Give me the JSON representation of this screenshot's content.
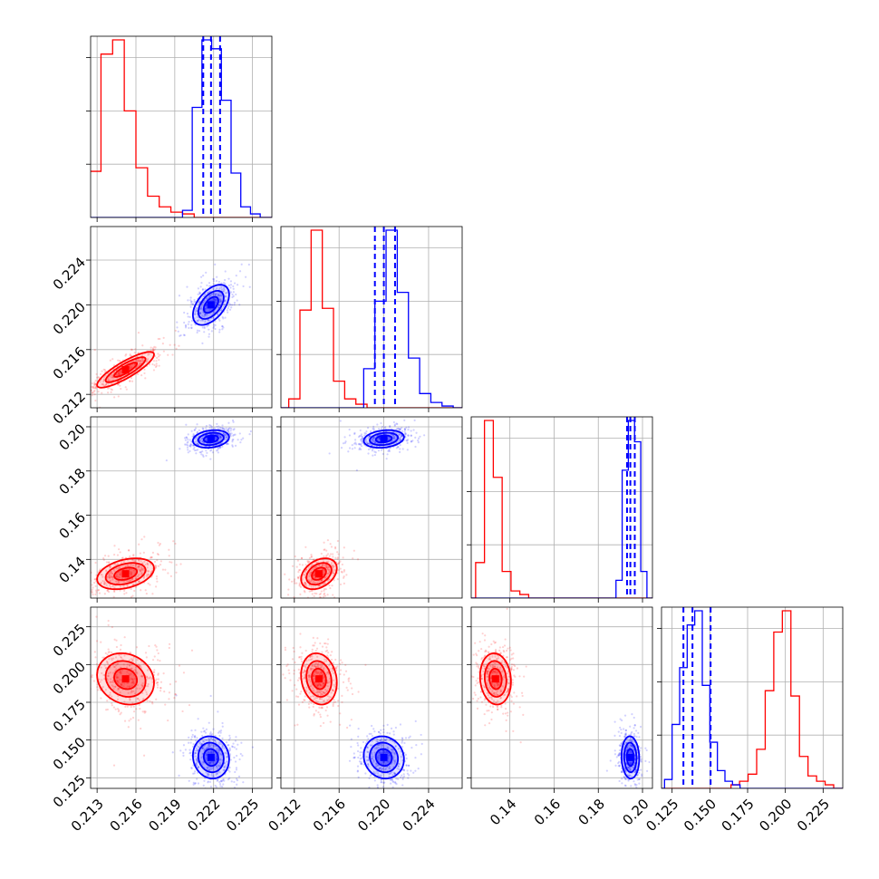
{
  "chart_data": {
    "type": "corner",
    "grid": true,
    "series": [
      {
        "name": "",
        "color": "#ff0000",
        "centers": [
          0.2152,
          0.2142,
          0.1335,
          0.1905
        ],
        "stds": [
          0.0011,
          0.0008,
          0.0035,
          0.0085
        ],
        "hist_counts": [
          [
            0.06,
            0.26,
            0.92,
            1.0,
            0.6,
            0.28,
            0.12,
            0.06,
            0.03,
            0.02
          ],
          [
            0.05,
            0.55,
            1.0,
            0.56,
            0.15,
            0.05,
            0.02
          ],
          [
            0.2,
            1.0,
            0.68,
            0.15,
            0.04,
            0.02
          ],
          [
            0.02,
            0.04,
            0.08,
            0.22,
            0.55,
            0.88,
            1.0,
            0.52,
            0.18,
            0.07,
            0.04,
            0.02
          ]
        ],
        "hist_ranges": [
          [
            0.2115,
            0.2205
          ],
          [
            0.2115,
            0.2185
          ],
          [
            0.1245,
            0.1485
          ],
          [
            0.164,
            0.232
          ]
        ],
        "quantiles": []
      },
      {
        "name": "",
        "color": "#0000ff",
        "centers": [
          0.2218,
          0.22,
          0.1945,
          0.1385
        ],
        "stds": [
          0.0007,
          0.0009,
          0.002,
          0.007
        ],
        "hist_counts": [
          [
            0.04,
            0.62,
            1.0,
            0.95,
            0.66,
            0.25,
            0.06,
            0.02
          ],
          [
            0.22,
            0.6,
            1.0,
            0.65,
            0.28,
            0.08,
            0.03,
            0.01
          ],
          [
            0.1,
            0.72,
            1.0,
            0.88,
            0.15
          ],
          [
            0.05,
            0.36,
            0.68,
            0.92,
            1.0,
            0.58,
            0.26,
            0.1,
            0.04,
            0.02
          ]
        ],
        "hist_ranges": [
          [
            0.2196,
            0.2256
          ],
          [
            0.2182,
            0.2262
          ],
          [
            0.188,
            0.202
          ],
          [
            0.12,
            0.17
          ]
        ],
        "quantiles": [
          [
            0.2212,
            0.2218,
            0.2225
          ],
          [
            0.2192,
            0.22,
            0.221
          ],
          [
            0.193,
            0.1945,
            0.1965
          ],
          [
            0.1325,
            0.1385,
            0.1505
          ]
        ]
      }
    ],
    "axes": [
      {
        "range": [
          0.2125,
          0.2265
        ],
        "ticks": [
          0.213,
          0.216,
          0.219,
          0.222,
          0.225
        ],
        "tick_labels": [
          "0.213",
          "0.216",
          "0.219",
          "0.222",
          "0.225"
        ]
      },
      {
        "range": [
          0.2108,
          0.227
        ],
        "ticks": [
          0.212,
          0.216,
          0.22,
          0.224
        ],
        "tick_labels": [
          "0.212",
          "0.216",
          "0.220",
          "0.224"
        ]
      },
      {
        "range": [
          0.1225,
          0.2045
        ],
        "ticks": [
          0.14,
          0.16,
          0.18,
          0.2
        ],
        "tick_labels": [
          "0.14",
          "0.16",
          "0.18",
          "0.20"
        ]
      },
      {
        "range": [
          0.118,
          0.238
        ],
        "ticks": [
          0.125,
          0.15,
          0.175,
          0.2,
          0.225
        ],
        "tick_labels": [
          "0.125",
          "0.150",
          "0.175",
          "0.200",
          "0.225"
        ]
      }
    ]
  }
}
